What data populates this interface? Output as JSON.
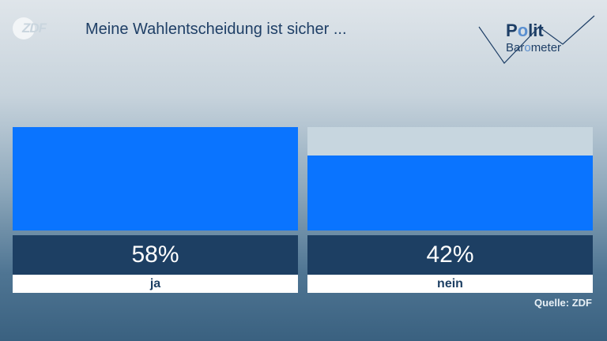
{
  "logo": {
    "text": "ZDF"
  },
  "title": "Meine Wahlentscheidung ist sicher ...",
  "brand": {
    "line1": [
      "P",
      "o",
      "lit"
    ],
    "line2": [
      "Bar",
      "o",
      "meter"
    ]
  },
  "chart_data": {
    "type": "bar",
    "title": "Meine Wahlentscheidung ist sicher ...",
    "categories": [
      "ja",
      "nein"
    ],
    "values": [
      58,
      42
    ],
    "value_labels": [
      "58%",
      "42%"
    ],
    "ylim": [
      0,
      58
    ],
    "colors": {
      "bar": "#0a74ff",
      "track": "#c7d6df",
      "value_box": "#1d3f63"
    }
  },
  "source": "Quelle: ZDF"
}
